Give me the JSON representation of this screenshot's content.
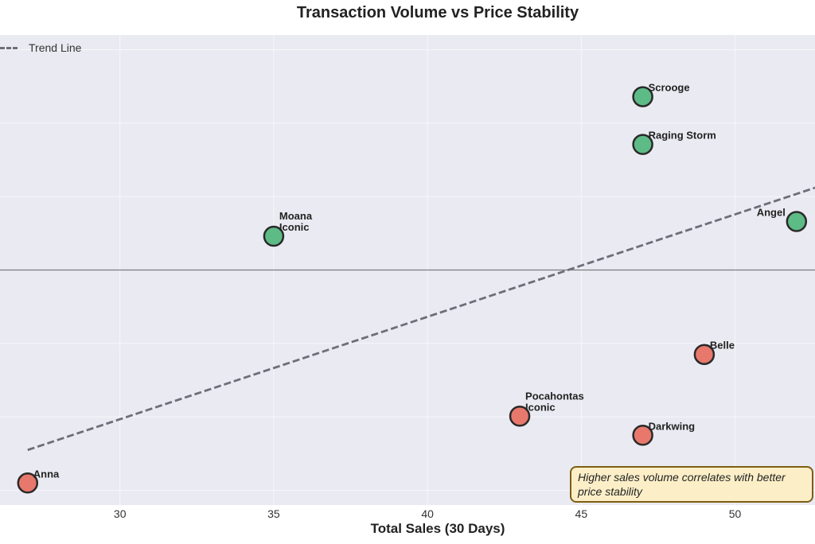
{
  "chart_data": {
    "type": "scatter",
    "title": "Transaction Volume vs Price Stability",
    "xlabel": "Total Sales (30 Days)",
    "ylabel": "",
    "xlim": [
      26.1,
      52.6
    ],
    "ylim": [
      -3.2,
      3.2
    ],
    "x_ticks": [
      30,
      35,
      40,
      45,
      50
    ],
    "y_gridlines": [
      -3,
      -2,
      -1,
      0,
      1,
      2,
      3
    ],
    "reference_line_y": 0,
    "grid": true,
    "legend": {
      "placement": "top-left",
      "entries": [
        "Trend Line"
      ]
    },
    "colors": {
      "positive": "#5dbb86",
      "negative": "#e8786c",
      "edge": "#2a2a2a",
      "trend": "#6e6e78",
      "background": "#eaeaf2"
    },
    "points": [
      {
        "label": "Anna",
        "x": 27,
        "y": -2.9,
        "color": "negative"
      },
      {
        "label": "Moana\nIconic",
        "x": 35,
        "y": 0.46,
        "color": "positive"
      },
      {
        "label": "Pocahontas\nIconic",
        "x": 43,
        "y": -1.99,
        "color": "negative"
      },
      {
        "label": "Darkwing",
        "x": 47,
        "y": -2.25,
        "color": "negative"
      },
      {
        "label": "Scrooge",
        "x": 47,
        "y": 2.36,
        "color": "positive"
      },
      {
        "label": "Raging Storm",
        "x": 47,
        "y": 1.71,
        "color": "positive"
      },
      {
        "label": "Belle",
        "x": 49,
        "y": -1.15,
        "color": "negative"
      },
      {
        "label": "Angel",
        "x": 52,
        "y": 0.66,
        "color": "positive"
      }
    ],
    "trend_line": {
      "name": "Trend Line",
      "x": [
        27,
        52.6
      ],
      "y": [
        -2.45,
        1.12
      ]
    },
    "annotation": "Higher sales volume correlates with better price stability"
  }
}
